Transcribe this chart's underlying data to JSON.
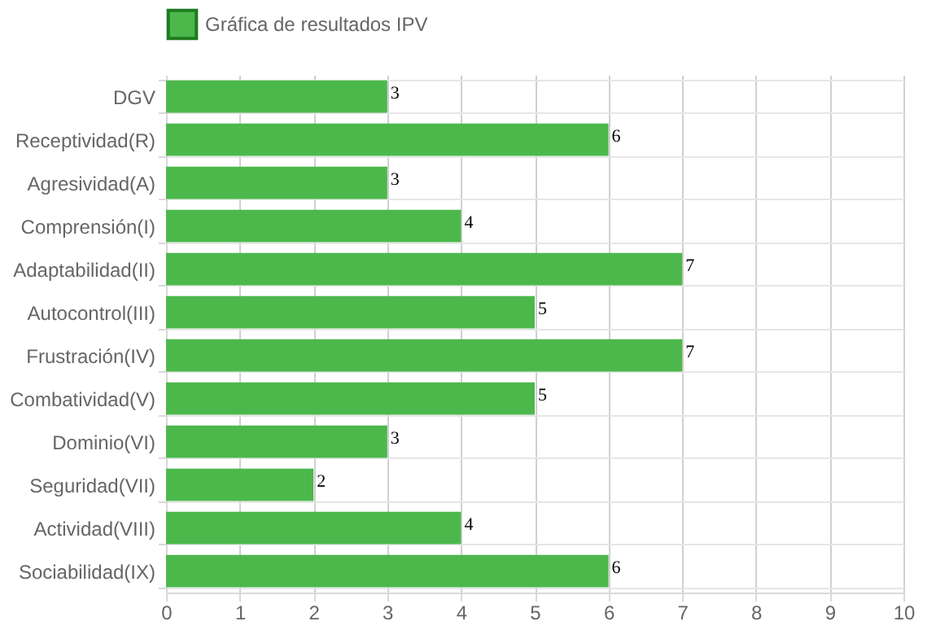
{
  "chart_data": {
    "type": "bar",
    "orientation": "horizontal",
    "categories": [
      "DGV",
      "Receptividad(R)",
      "Agresividad(A)",
      "Comprensión(I)",
      "Adaptabilidad(II)",
      "Autocontrol(III)",
      "Frustración(IV)",
      "Combatividad(V)",
      "Dominio(VI)",
      "Seguridad(VII)",
      "Actividad(VIII)",
      "Sociabilidad(IX)"
    ],
    "series": [
      {
        "name": "Gráfica de resultados IPV",
        "color": "#4cb84c",
        "values": [
          3,
          6,
          3,
          4,
          7,
          5,
          7,
          5,
          3,
          2,
          4,
          6
        ]
      }
    ],
    "xlim": [
      0,
      10
    ],
    "xticks": [
      0,
      1,
      2,
      3,
      4,
      5,
      6,
      7,
      8,
      9,
      10
    ],
    "grid": true,
    "legend": "top",
    "data_labels": true
  }
}
